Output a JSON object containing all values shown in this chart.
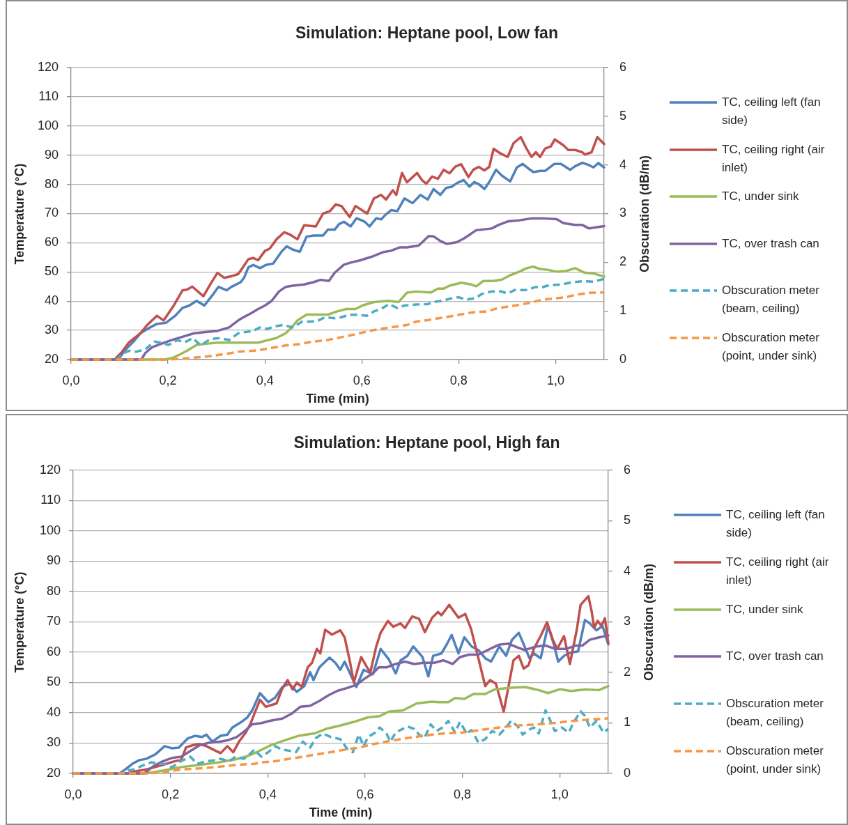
{
  "chart_data": [
    {
      "type": "line",
      "title": "Simulation: Heptane pool, Low fan",
      "xlabel": "Time (min)",
      "ylabel": "Temperature (°C)",
      "y2label": "Obscuration (dB/m)",
      "xlim": [
        0,
        1.1
      ],
      "xticks": [
        {
          "value": 0,
          "label": "0,0"
        },
        {
          "value": 0.2,
          "label": "0,2"
        },
        {
          "value": 0.4,
          "label": "0,4"
        },
        {
          "value": 0.6,
          "label": "0,6"
        },
        {
          "value": 0.8,
          "label": "0,8"
        },
        {
          "value": 1,
          "label": "1,0"
        }
      ],
      "ylim": [
        20,
        120
      ],
      "yticks": [
        20,
        30,
        40,
        50,
        60,
        70,
        80,
        90,
        100,
        110,
        120
      ],
      "y2lim": [
        0,
        6
      ],
      "y2ticks": [
        0,
        1,
        2,
        3,
        4,
        5,
        6
      ],
      "grid": "y",
      "legend": "right",
      "series": [
        {
          "name": "TC, ceiling left (fan side)",
          "color": "#4f81bd",
          "line_style": "solid",
          "x": [
            0,
            0.098,
            0.11,
            0.129,
            0.143,
            0.163,
            0.177,
            0.196,
            0.215,
            0.23,
            0.244,
            0.259,
            0.275,
            0.292,
            0.304,
            0.321,
            0.331,
            0.35,
            0.357,
            0.366,
            0.376,
            0.39,
            0.402,
            0.417,
            0.434,
            0.445,
            0.457,
            0.472,
            0.486,
            0.5,
            0.52,
            0.53,
            0.544,
            0.553,
            0.563,
            0.577,
            0.589,
            0.606,
            0.616,
            0.63,
            0.64,
            0.649,
            0.661,
            0.673,
            0.688,
            0.7,
            0.705,
            0.721,
            0.736,
            0.748,
            0.762,
            0.774,
            0.786,
            0.796,
            0.81,
            0.822,
            0.832,
            0.842,
            0.853,
            0.863,
            0.877,
            0.889,
            0.906,
            0.92,
            0.932,
            0.944,
            0.954,
            0.968,
            0.978,
            0.997,
            1.011,
            1.03,
            1.04,
            1.055,
            1.069,
            1.078,
            1.088,
            1.1
          ],
          "values": [
            20,
            20,
            23,
            26.2,
            29,
            31,
            32.2,
            32.6,
            35,
            37.7,
            38.5,
            40.1,
            38.5,
            42.1,
            44.9,
            43.7,
            44.9,
            46.5,
            48,
            51.6,
            52.4,
            51.3,
            52.4,
            52.9,
            56.9,
            58.8,
            57.7,
            56.9,
            62.1,
            62.5,
            62.5,
            64.5,
            64.5,
            66.4,
            67.2,
            65.6,
            68.4,
            67.2,
            65.6,
            68.4,
            68,
            69.6,
            71.2,
            70.8,
            75.2,
            74,
            73.6,
            76.4,
            74.8,
            78.4,
            76.4,
            78.8,
            79.2,
            80.4,
            81.5,
            79.2,
            80.8,
            80,
            78.4,
            80.8,
            85,
            83,
            81,
            85.8,
            87,
            85.4,
            84.2,
            84.6,
            84.6,
            87,
            87,
            85,
            86.2,
            87.4,
            86.6,
            85.8,
            87.3,
            85.8
          ]
        },
        {
          "name": "TC, ceiling right (air inlet)",
          "color": "#c0504d",
          "line_style": "solid",
          "x": [
            0,
            0.09,
            0.105,
            0.119,
            0.143,
            0.157,
            0.177,
            0.191,
            0.21,
            0.23,
            0.24,
            0.25,
            0.273,
            0.287,
            0.302,
            0.316,
            0.33,
            0.345,
            0.355,
            0.366,
            0.376,
            0.386,
            0.4,
            0.41,
            0.424,
            0.44,
            0.452,
            0.467,
            0.481,
            0.505,
            0.52,
            0.534,
            0.546,
            0.558,
            0.575,
            0.587,
            0.611,
            0.625,
            0.64,
            0.65,
            0.664,
            0.671,
            0.683,
            0.693,
            0.714,
            0.724,
            0.733,
            0.745,
            0.757,
            0.769,
            0.781,
            0.793,
            0.805,
            0.82,
            0.83,
            0.841,
            0.853,
            0.863,
            0.872,
            0.886,
            0.901,
            0.913,
            0.928,
            0.94,
            0.95,
            0.959,
            0.968,
            0.978,
            0.99,
            0.998,
            1.016,
            1.026,
            1.04,
            1.055,
            1.06,
            1.074,
            1.086,
            1.1
          ],
          "values": [
            20,
            20,
            22.6,
            25.8,
            29,
            31.8,
            35,
            33.4,
            38,
            43.7,
            44,
            45,
            41.7,
            45.7,
            49.7,
            48,
            48.5,
            49.3,
            51.7,
            54.4,
            54.8,
            54,
            57.2,
            58,
            61.2,
            63.6,
            62.8,
            61.2,
            66,
            65.6,
            70,
            70.8,
            73.1,
            72.6,
            68.8,
            72.6,
            70,
            75.2,
            76.4,
            74.8,
            78,
            76.4,
            83.9,
            80.7,
            83.9,
            81.5,
            80.2,
            82.7,
            81.9,
            85,
            83.8,
            86.1,
            86.9,
            82.5,
            85,
            86,
            84.8,
            86,
            92.2,
            90.6,
            89.4,
            94.1,
            96.2,
            92.2,
            89.4,
            91,
            89.4,
            92.2,
            93,
            95.4,
            93.4,
            91.8,
            91.8,
            91,
            90.2,
            91,
            96.2,
            93.8
          ]
        },
        {
          "name": "TC, under sink",
          "color": "#9bbb59",
          "line_style": "solid",
          "x": [
            0,
            0.193,
            0.21,
            0.225,
            0.239,
            0.259,
            0.278,
            0.302,
            0.386,
            0.405,
            0.424,
            0.443,
            0.453,
            0.467,
            0.486,
            0.53,
            0.549,
            0.568,
            0.587,
            0.601,
            0.625,
            0.654,
            0.676,
            0.693,
            0.712,
            0.743,
            0.757,
            0.769,
            0.781,
            0.805,
            0.824,
            0.836,
            0.851,
            0.872,
            0.889,
            0.904,
            0.925,
            0.94,
            0.954,
            0.968,
            0.985,
            1.002,
            1.021,
            1.04,
            1.059,
            1.078,
            1.1
          ],
          "values": [
            20,
            20,
            20.6,
            21.8,
            23,
            25,
            25.4,
            25.8,
            25.8,
            26.6,
            27.4,
            29,
            30.6,
            33.4,
            35.4,
            35.4,
            36.5,
            37.3,
            37.3,
            38.5,
            39.7,
            40.1,
            39.7,
            42.9,
            43.3,
            43,
            44.3,
            44.3,
            45.3,
            46.3,
            45.8,
            45.1,
            46.9,
            46.9,
            47.4,
            48.7,
            50.1,
            51.3,
            51.8,
            51,
            50.7,
            50.1,
            50.3,
            51.3,
            49.8,
            49.5,
            48.4
          ]
        },
        {
          "name": "TC, over trash can",
          "color": "#8064a2",
          "line_style": "solid",
          "x": [
            0,
            0.145,
            0.153,
            0.167,
            0.186,
            0.206,
            0.23,
            0.254,
            0.278,
            0.302,
            0.326,
            0.345,
            0.357,
            0.371,
            0.386,
            0.4,
            0.414,
            0.429,
            0.443,
            0.457,
            0.481,
            0.5,
            0.515,
            0.532,
            0.544,
            0.563,
            0.577,
            0.597,
            0.62,
            0.644,
            0.659,
            0.678,
            0.693,
            0.717,
            0.726,
            0.738,
            0.748,
            0.762,
            0.776,
            0.796,
            0.81,
            0.82,
            0.836,
            0.853,
            0.868,
            0.882,
            0.901,
            0.925,
            0.949,
            0.978,
            1.002,
            1.016,
            1.04,
            1.055,
            1.069,
            1.083,
            1.1
          ],
          "values": [
            20,
            20,
            22.2,
            24.2,
            25.4,
            26.6,
            27.8,
            29,
            29.4,
            29.8,
            31,
            33.4,
            34.6,
            35.8,
            37.3,
            38.5,
            40.1,
            43.3,
            44.9,
            45.3,
            45.7,
            46.5,
            47.3,
            46.9,
            49.7,
            52.5,
            53.2,
            54,
            55.2,
            56.8,
            57.2,
            58.4,
            58.4,
            59,
            60.4,
            62.3,
            62.2,
            60.6,
            59.6,
            60.2,
            61.4,
            62.5,
            64.3,
            64.6,
            64.9,
            66.1,
            67.3,
            67.7,
            68.3,
            68.3,
            68.1,
            66.7,
            66.1,
            66.1,
            64.9,
            65.3,
            65.7
          ]
        },
        {
          "name": "Obscuration meter (beam, ceiling)",
          "color": "#4bacc6",
          "line_style": "dashed",
          "axis": "y2",
          "x": [
            0,
            0.095,
            0.105,
            0.119,
            0.134,
            0.153,
            0.172,
            0.186,
            0.201,
            0.22,
            0.234,
            0.251,
            0.268,
            0.287,
            0.307,
            0.326,
            0.345,
            0.357,
            0.376,
            0.39,
            0.405,
            0.419,
            0.438,
            0.457,
            0.477,
            0.496,
            0.51,
            0.524,
            0.544,
            0.558,
            0.573,
            0.592,
            0.611,
            0.625,
            0.64,
            0.656,
            0.673,
            0.688,
            0.712,
            0.736,
            0.748,
            0.767,
            0.786,
            0.8,
            0.815,
            0.834,
            0.848,
            0.868,
            0.887,
            0.901,
            0.916,
            0.94,
            0.959,
            0.973,
            0.988,
            1.011,
            1.035,
            1.059,
            1.078,
            1.1
          ],
          "values": [
            0,
            0,
            0.11,
            0.18,
            0.16,
            0.21,
            0.37,
            0.35,
            0.3,
            0.4,
            0.35,
            0.44,
            0.29,
            0.42,
            0.44,
            0.4,
            0.54,
            0.56,
            0.59,
            0.66,
            0.63,
            0.68,
            0.71,
            0.66,
            0.78,
            0.78,
            0.8,
            0.87,
            0.85,
            0.87,
            0.92,
            0.92,
            0.9,
            0.99,
            1.04,
            1.14,
            1.06,
            1.11,
            1.13,
            1.14,
            1.18,
            1.21,
            1.26,
            1.28,
            1.23,
            1.26,
            1.35,
            1.4,
            1.4,
            1.36,
            1.43,
            1.43,
            1.49,
            1.49,
            1.53,
            1.54,
            1.59,
            1.61,
            1.6,
            1.66
          ]
        },
        {
          "name": "Obscuration meter (point, under sink)",
          "color": "#f79646",
          "line_style": "dashed",
          "axis": "y2",
          "x": [
            0,
            0.2,
            0.244,
            0.278,
            0.316,
            0.345,
            0.357,
            0.386,
            0.414,
            0.443,
            0.472,
            0.5,
            0.529,
            0.558,
            0.587,
            0.616,
            0.645,
            0.673,
            0.693,
            0.712,
            0.736,
            0.772,
            0.8,
            0.829,
            0.858,
            0.882,
            0.916,
            0.944,
            0.973,
            1.002,
            1.021,
            1.04,
            1.069,
            1.1
          ],
          "values": [
            0,
            0,
            0.03,
            0.06,
            0.11,
            0.16,
            0.17,
            0.19,
            0.24,
            0.29,
            0.32,
            0.37,
            0.4,
            0.46,
            0.52,
            0.59,
            0.64,
            0.68,
            0.71,
            0.78,
            0.81,
            0.87,
            0.92,
            0.97,
            0.99,
            1.06,
            1.11,
            1.16,
            1.23,
            1.26,
            1.28,
            1.33,
            1.37,
            1.38
          ]
        }
      ]
    },
    {
      "type": "line",
      "title": "Simulation: Heptane pool, High fan",
      "xlabel": "Time (min)",
      "ylabel": "Temperature (°C)",
      "y2label": "Obscuration (dB/m)",
      "xlim": [
        0,
        1.1
      ],
      "xticks": [
        {
          "value": 0,
          "label": "0,0"
        },
        {
          "value": 0.2,
          "label": "0,2"
        },
        {
          "value": 0.4,
          "label": "0,4"
        },
        {
          "value": 0.6,
          "label": "0,6"
        },
        {
          "value": 0.8,
          "label": "0,8"
        },
        {
          "value": 1,
          "label": "1,0"
        }
      ],
      "ylim": [
        20,
        120
      ],
      "yticks": [
        20,
        30,
        40,
        50,
        60,
        70,
        80,
        90,
        100,
        110,
        120
      ],
      "y2lim": [
        0,
        6
      ],
      "y2ticks": [
        0,
        1,
        2,
        3,
        4,
        5,
        6
      ],
      "grid": "y",
      "legend": "right",
      "series": [
        {
          "name": "TC, ceiling left (fan side)",
          "color": "#4f81bd",
          "line_style": "solid",
          "x": [
            0,
            0.095,
            0.107,
            0.122,
            0.136,
            0.15,
            0.169,
            0.188,
            0.203,
            0.217,
            0.236,
            0.25,
            0.265,
            0.274,
            0.286,
            0.303,
            0.317,
            0.327,
            0.346,
            0.358,
            0.368,
            0.384,
            0.401,
            0.415,
            0.43,
            0.444,
            0.46,
            0.475,
            0.487,
            0.494,
            0.506,
            0.527,
            0.539,
            0.549,
            0.558,
            0.568,
            0.582,
            0.597,
            0.616,
            0.632,
            0.649,
            0.663,
            0.673,
            0.687,
            0.699,
            0.718,
            0.73,
            0.74,
            0.757,
            0.768,
            0.778,
            0.792,
            0.804,
            0.819,
            0.833,
            0.847,
            0.859,
            0.876,
            0.89,
            0.902,
            0.916,
            0.926,
            0.938,
            0.947,
            0.961,
            0.976,
            0.988,
            0.997,
            1.009,
            1.023,
            1.038,
            1.052,
            1.062,
            1.076,
            1.088,
            1.1
          ],
          "values": [
            20,
            20,
            21.3,
            23.2,
            24.4,
            24.8,
            26.3,
            29,
            28.3,
            28.5,
            31.6,
            32.4,
            32,
            32.8,
            30.5,
            32.4,
            32.8,
            35.1,
            37,
            38.5,
            40.8,
            46.5,
            43.5,
            45,
            48.5,
            49.6,
            46.9,
            48.8,
            53.4,
            50.8,
            55,
            58.2,
            56.5,
            54.2,
            56.9,
            53.4,
            48.5,
            54.2,
            52.7,
            61.1,
            57.6,
            53,
            57.3,
            58.8,
            61.9,
            58.4,
            52,
            58.8,
            59.6,
            62.6,
            65.7,
            59.6,
            64.9,
            61.9,
            60.7,
            58,
            56.9,
            61.9,
            58.8,
            64.1,
            66.4,
            62.6,
            58,
            59.6,
            58,
            68.7,
            62.6,
            56.9,
            58.8,
            59.9,
            60.3,
            70.6,
            69.5,
            67.2,
            68.7,
            62.6
          ]
        },
        {
          "name": "TC, ceiling right (air inlet)",
          "color": "#c0504d",
          "line_style": "solid",
          "x": [
            0,
            0.11,
            0.122,
            0.15,
            0.184,
            0.208,
            0.222,
            0.232,
            0.246,
            0.26,
            0.274,
            0.289,
            0.303,
            0.317,
            0.329,
            0.341,
            0.355,
            0.365,
            0.372,
            0.384,
            0.396,
            0.418,
            0.43,
            0.441,
            0.451,
            0.46,
            0.47,
            0.482,
            0.491,
            0.501,
            0.508,
            0.518,
            0.532,
            0.549,
            0.558,
            0.568,
            0.577,
            0.592,
            0.604,
            0.611,
            0.623,
            0.632,
            0.647,
            0.658,
            0.673,
            0.682,
            0.697,
            0.711,
            0.723,
            0.738,
            0.75,
            0.757,
            0.773,
            0.792,
            0.806,
            0.818,
            0.833,
            0.847,
            0.857,
            0.869,
            0.885,
            0.895,
            0.905,
            0.916,
            0.926,
            0.936,
            0.947,
            0.962,
            0.974,
            0.986,
            0.995,
            1.009,
            1.021,
            1.035,
            1.043,
            1.052,
            1.059,
            1.066,
            1.071,
            1.078,
            1.086,
            1.093,
            1.1
          ],
          "values": [
            20,
            20,
            20.5,
            21.3,
            22.8,
            24,
            24.4,
            28.6,
            29.3,
            29.7,
            29,
            27.8,
            26.7,
            29,
            27,
            30.5,
            33.5,
            36.6,
            39.5,
            44.3,
            42,
            43.1,
            48.1,
            50.8,
            47.7,
            50,
            48.5,
            55,
            56.5,
            61.1,
            59.6,
            67.4,
            65.8,
            67.2,
            64.9,
            57.6,
            50,
            58.4,
            55,
            53.4,
            61.9,
            66.4,
            70.3,
            68.4,
            69.5,
            68,
            71.8,
            71,
            66.6,
            71.4,
            73.3,
            72.2,
            75.6,
            71.4,
            72.6,
            67.6,
            58,
            48.8,
            50.8,
            49.6,
            40.4,
            48.8,
            57.3,
            58.8,
            54.6,
            55.7,
            61.1,
            65.7,
            69.9,
            64.1,
            61.1,
            65.3,
            56.1,
            67.2,
            75.6,
            77.2,
            78.5,
            73.3,
            68,
            70.3,
            68.7,
            71.2,
            63
          ]
        },
        {
          "name": "TC, under sink",
          "color": "#9bbb59",
          "line_style": "solid",
          "x": [
            0,
            0.15,
            0.184,
            0.222,
            0.26,
            0.298,
            0.336,
            0.358,
            0.377,
            0.406,
            0.434,
            0.463,
            0.496,
            0.52,
            0.549,
            0.577,
            0.606,
            0.63,
            0.649,
            0.678,
            0.706,
            0.737,
            0.752,
            0.771,
            0.785,
            0.804,
            0.823,
            0.847,
            0.866,
            0.895,
            0.929,
            0.957,
            0.976,
            1,
            1.023,
            1.052,
            1.081,
            1.1
          ],
          "values": [
            20,
            20,
            20.9,
            22.1,
            22.8,
            23.6,
            24.7,
            25.7,
            27,
            29.3,
            30.9,
            32.4,
            33.2,
            34.7,
            35.8,
            37,
            38.5,
            38.9,
            40.4,
            40.8,
            43.1,
            43.7,
            43.5,
            43.5,
            44.9,
            44.6,
            46.2,
            46.2,
            47.7,
            48.2,
            48.5,
            47.5,
            46.5,
            47.8,
            47.2,
            47.7,
            47.5,
            48.8
          ]
        },
        {
          "name": "TC, over trash can",
          "color": "#8064a2",
          "line_style": "solid",
          "x": [
            0,
            0.146,
            0.165,
            0.184,
            0.203,
            0.222,
            0.241,
            0.26,
            0.279,
            0.303,
            0.317,
            0.336,
            0.355,
            0.368,
            0.387,
            0.406,
            0.43,
            0.449,
            0.467,
            0.487,
            0.506,
            0.525,
            0.544,
            0.563,
            0.582,
            0.601,
            0.616,
            0.628,
            0.644,
            0.663,
            0.682,
            0.701,
            0.72,
            0.742,
            0.761,
            0.78,
            0.795,
            0.814,
            0.833,
            0.857,
            0.876,
            0.895,
            0.914,
            0.928,
            0.952,
            0.971,
            0.99,
            1.014,
            1.033,
            1.047,
            1.062,
            1.081,
            1.1
          ],
          "values": [
            20,
            20,
            22.4,
            24,
            25.1,
            25.5,
            27.4,
            29.3,
            30.1,
            30.5,
            30.9,
            32,
            34.3,
            36.2,
            36.6,
            37.4,
            38.1,
            39.7,
            42,
            42.3,
            43.9,
            45.8,
            47.3,
            48.2,
            49.2,
            51.5,
            53,
            55,
            55,
            56.1,
            56.9,
            56.1,
            56.5,
            56.5,
            57.3,
            56.1,
            58.4,
            59.2,
            59.2,
            61.1,
            62.5,
            62.8,
            61.5,
            60.7,
            61.9,
            62.2,
            61.1,
            61.1,
            62.2,
            62.2,
            64.1,
            64.9,
            65.5
          ]
        },
        {
          "name": "Obscuration meter (beam, ceiling)",
          "color": "#4bacc6",
          "line_style": "dashed",
          "axis": "y2",
          "x": [
            0,
            0.1,
            0.107,
            0.126,
            0.141,
            0.16,
            0.179,
            0.19,
            0.203,
            0.217,
            0.232,
            0.241,
            0.255,
            0.274,
            0.289,
            0.303,
            0.32,
            0.334,
            0.351,
            0.365,
            0.372,
            0.387,
            0.401,
            0.415,
            0.43,
            0.444,
            0.458,
            0.472,
            0.487,
            0.499,
            0.513,
            0.53,
            0.549,
            0.563,
            0.575,
            0.587,
            0.597,
            0.606,
            0.621,
            0.63,
            0.644,
            0.652,
            0.663,
            0.673,
            0.687,
            0.701,
            0.711,
            0.722,
            0.735,
            0.747,
            0.759,
            0.771,
            0.785,
            0.795,
            0.809,
            0.819,
            0.833,
            0.847,
            0.861,
            0.876,
            0.89,
            0.9,
            0.914,
            0.924,
            0.936,
            0.947,
            0.957,
            0.964,
            0.971,
            0.981,
            0.99,
            1.004,
            1.019,
            1.028,
            1.043,
            1.052,
            1.062,
            1.076,
            1.09,
            1.1
          ],
          "values": [
            0,
            0,
            0.06,
            0.08,
            0.15,
            0.22,
            0.19,
            0.19,
            0.12,
            0.22,
            0.29,
            0.33,
            0.19,
            0.24,
            0.26,
            0.29,
            0.24,
            0.33,
            0.29,
            0.4,
            0.47,
            0.33,
            0.42,
            0.54,
            0.47,
            0.45,
            0.42,
            0.63,
            0.51,
            0.7,
            0.79,
            0.72,
            0.68,
            0.49,
            0.42,
            0.77,
            0.54,
            0.72,
            0.81,
            0.91,
            0.79,
            0.63,
            0.81,
            0.86,
            0.93,
            0.88,
            0.77,
            0.7,
            0.97,
            0.84,
            0.91,
            1.04,
            0.81,
            1.02,
            0.79,
            0.86,
            0.61,
            0.68,
            0.84,
            0.77,
            0.91,
            1.04,
            0.93,
            0.77,
            0.86,
            0.91,
            0.79,
            1.02,
            1.25,
            1.04,
            0.84,
            0.91,
            0.81,
            1,
            1.23,
            1.14,
            0.91,
            1.04,
            0.81,
            0.88
          ]
        },
        {
          "name": "Obscuration meter (point, under sink)",
          "color": "#f79646",
          "line_style": "dashed",
          "axis": "y2",
          "x": [
            0,
            0.15,
            0.184,
            0.222,
            0.26,
            0.298,
            0.336,
            0.372,
            0.387,
            0.415,
            0.444,
            0.472,
            0.501,
            0.53,
            0.558,
            0.587,
            0.616,
            0.644,
            0.673,
            0.701,
            0.737,
            0.761,
            0.8,
            0.838,
            0.876,
            0.914,
            0.952,
            0.99,
            1.028,
            1.066,
            1.1
          ],
          "values": [
            0,
            0,
            0.02,
            0.08,
            0.1,
            0.13,
            0.17,
            0.19,
            0.22,
            0.24,
            0.29,
            0.33,
            0.38,
            0.42,
            0.47,
            0.51,
            0.58,
            0.63,
            0.68,
            0.72,
            0.77,
            0.79,
            0.81,
            0.86,
            0.91,
            0.95,
            0.97,
            1,
            1.04,
            1.07,
            1.09
          ]
        }
      ]
    }
  ]
}
